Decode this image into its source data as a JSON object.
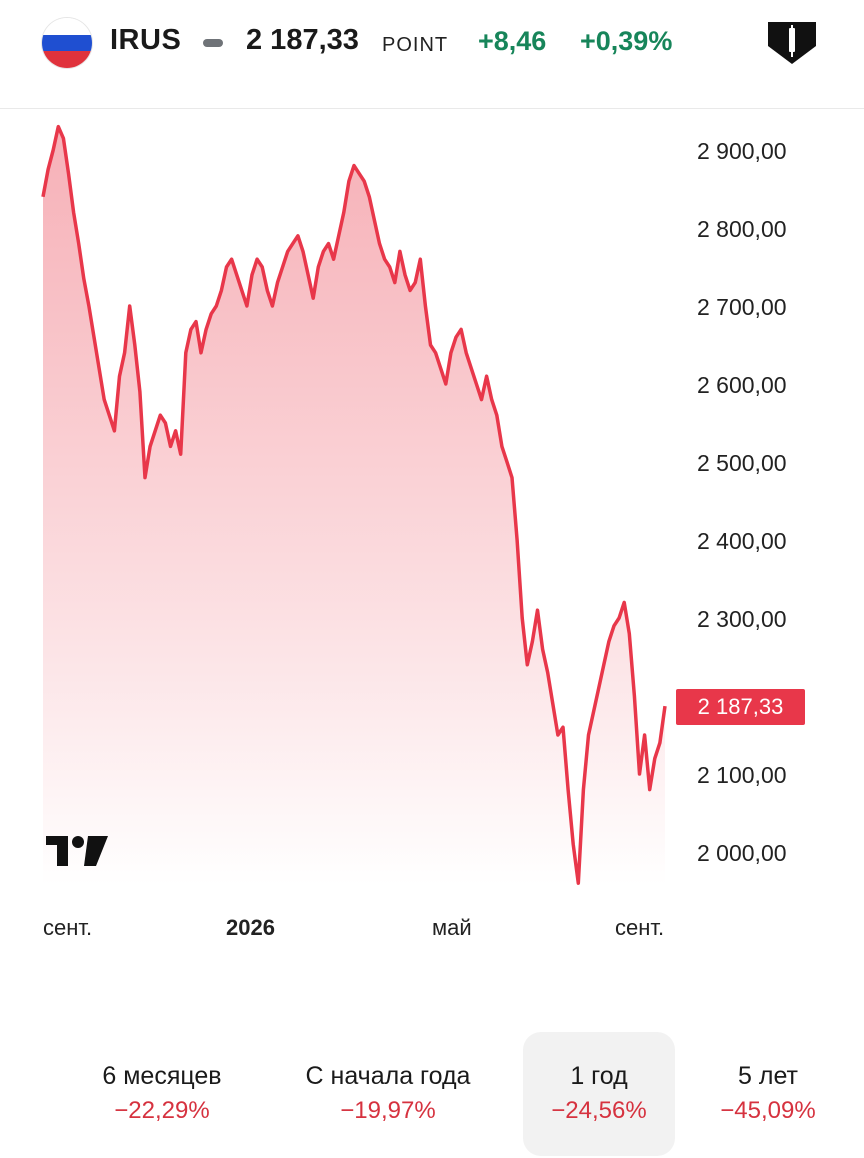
{
  "header": {
    "ticker": "IRUS",
    "price": "2 187,33",
    "unit": "POINT",
    "change_abs": "+8,46",
    "change_pct": "+0,39%",
    "change_color": "#17855a",
    "flag_colors": [
      "#ffffff",
      "#1f4fd1",
      "#e0323c"
    ]
  },
  "chart_data": {
    "type": "area",
    "color": "#e8374a",
    "last_value_label": "2 187,33",
    "x_tick_labels": [
      "сент.",
      "2026",
      "май",
      "сент."
    ],
    "y_tick_labels": [
      "2 900,00",
      "2 800,00",
      "2 700,00",
      "2 600,00",
      "2 500,00",
      "2 400,00",
      "2 300,00",
      "2 100,00",
      "2 000,00"
    ],
    "ylim": [
      1950,
      2960
    ],
    "values": [
      2840,
      2875,
      2900,
      2930,
      2915,
      2870,
      2820,
      2780,
      2735,
      2700,
      2660,
      2620,
      2580,
      2560,
      2540,
      2610,
      2640,
      2700,
      2650,
      2590,
      2480,
      2520,
      2540,
      2560,
      2550,
      2520,
      2540,
      2510,
      2640,
      2670,
      2680,
      2640,
      2670,
      2690,
      2700,
      2720,
      2750,
      2760,
      2740,
      2720,
      2700,
      2740,
      2760,
      2750,
      2720,
      2700,
      2730,
      2750,
      2770,
      2780,
      2790,
      2770,
      2740,
      2710,
      2750,
      2770,
      2780,
      2760,
      2790,
      2820,
      2860,
      2880,
      2870,
      2860,
      2840,
      2810,
      2780,
      2760,
      2750,
      2730,
      2770,
      2740,
      2720,
      2730,
      2760,
      2700,
      2650,
      2640,
      2620,
      2600,
      2640,
      2660,
      2670,
      2640,
      2620,
      2600,
      2580,
      2610,
      2580,
      2560,
      2520,
      2500,
      2480,
      2400,
      2300,
      2240,
      2270,
      2310,
      2260,
      2230,
      2190,
      2150,
      2160,
      2080,
      2010,
      1960,
      2080,
      2150,
      2180,
      2210,
      2240,
      2270,
      2290,
      2300,
      2320,
      2280,
      2200,
      2100,
      2150,
      2080,
      2120,
      2140,
      2187
    ]
  },
  "periods": [
    {
      "label": "6 месяцев",
      "value": "−22,29%"
    },
    {
      "label": "С начала года",
      "value": "−19,97%"
    },
    {
      "label": "1 год",
      "value": "−24,56%",
      "active": true
    },
    {
      "label": "5 лет",
      "value": "−45,09%"
    }
  ],
  "icons": {
    "brand": "diamond-candle-icon",
    "watermark": "tradingview-logo"
  }
}
